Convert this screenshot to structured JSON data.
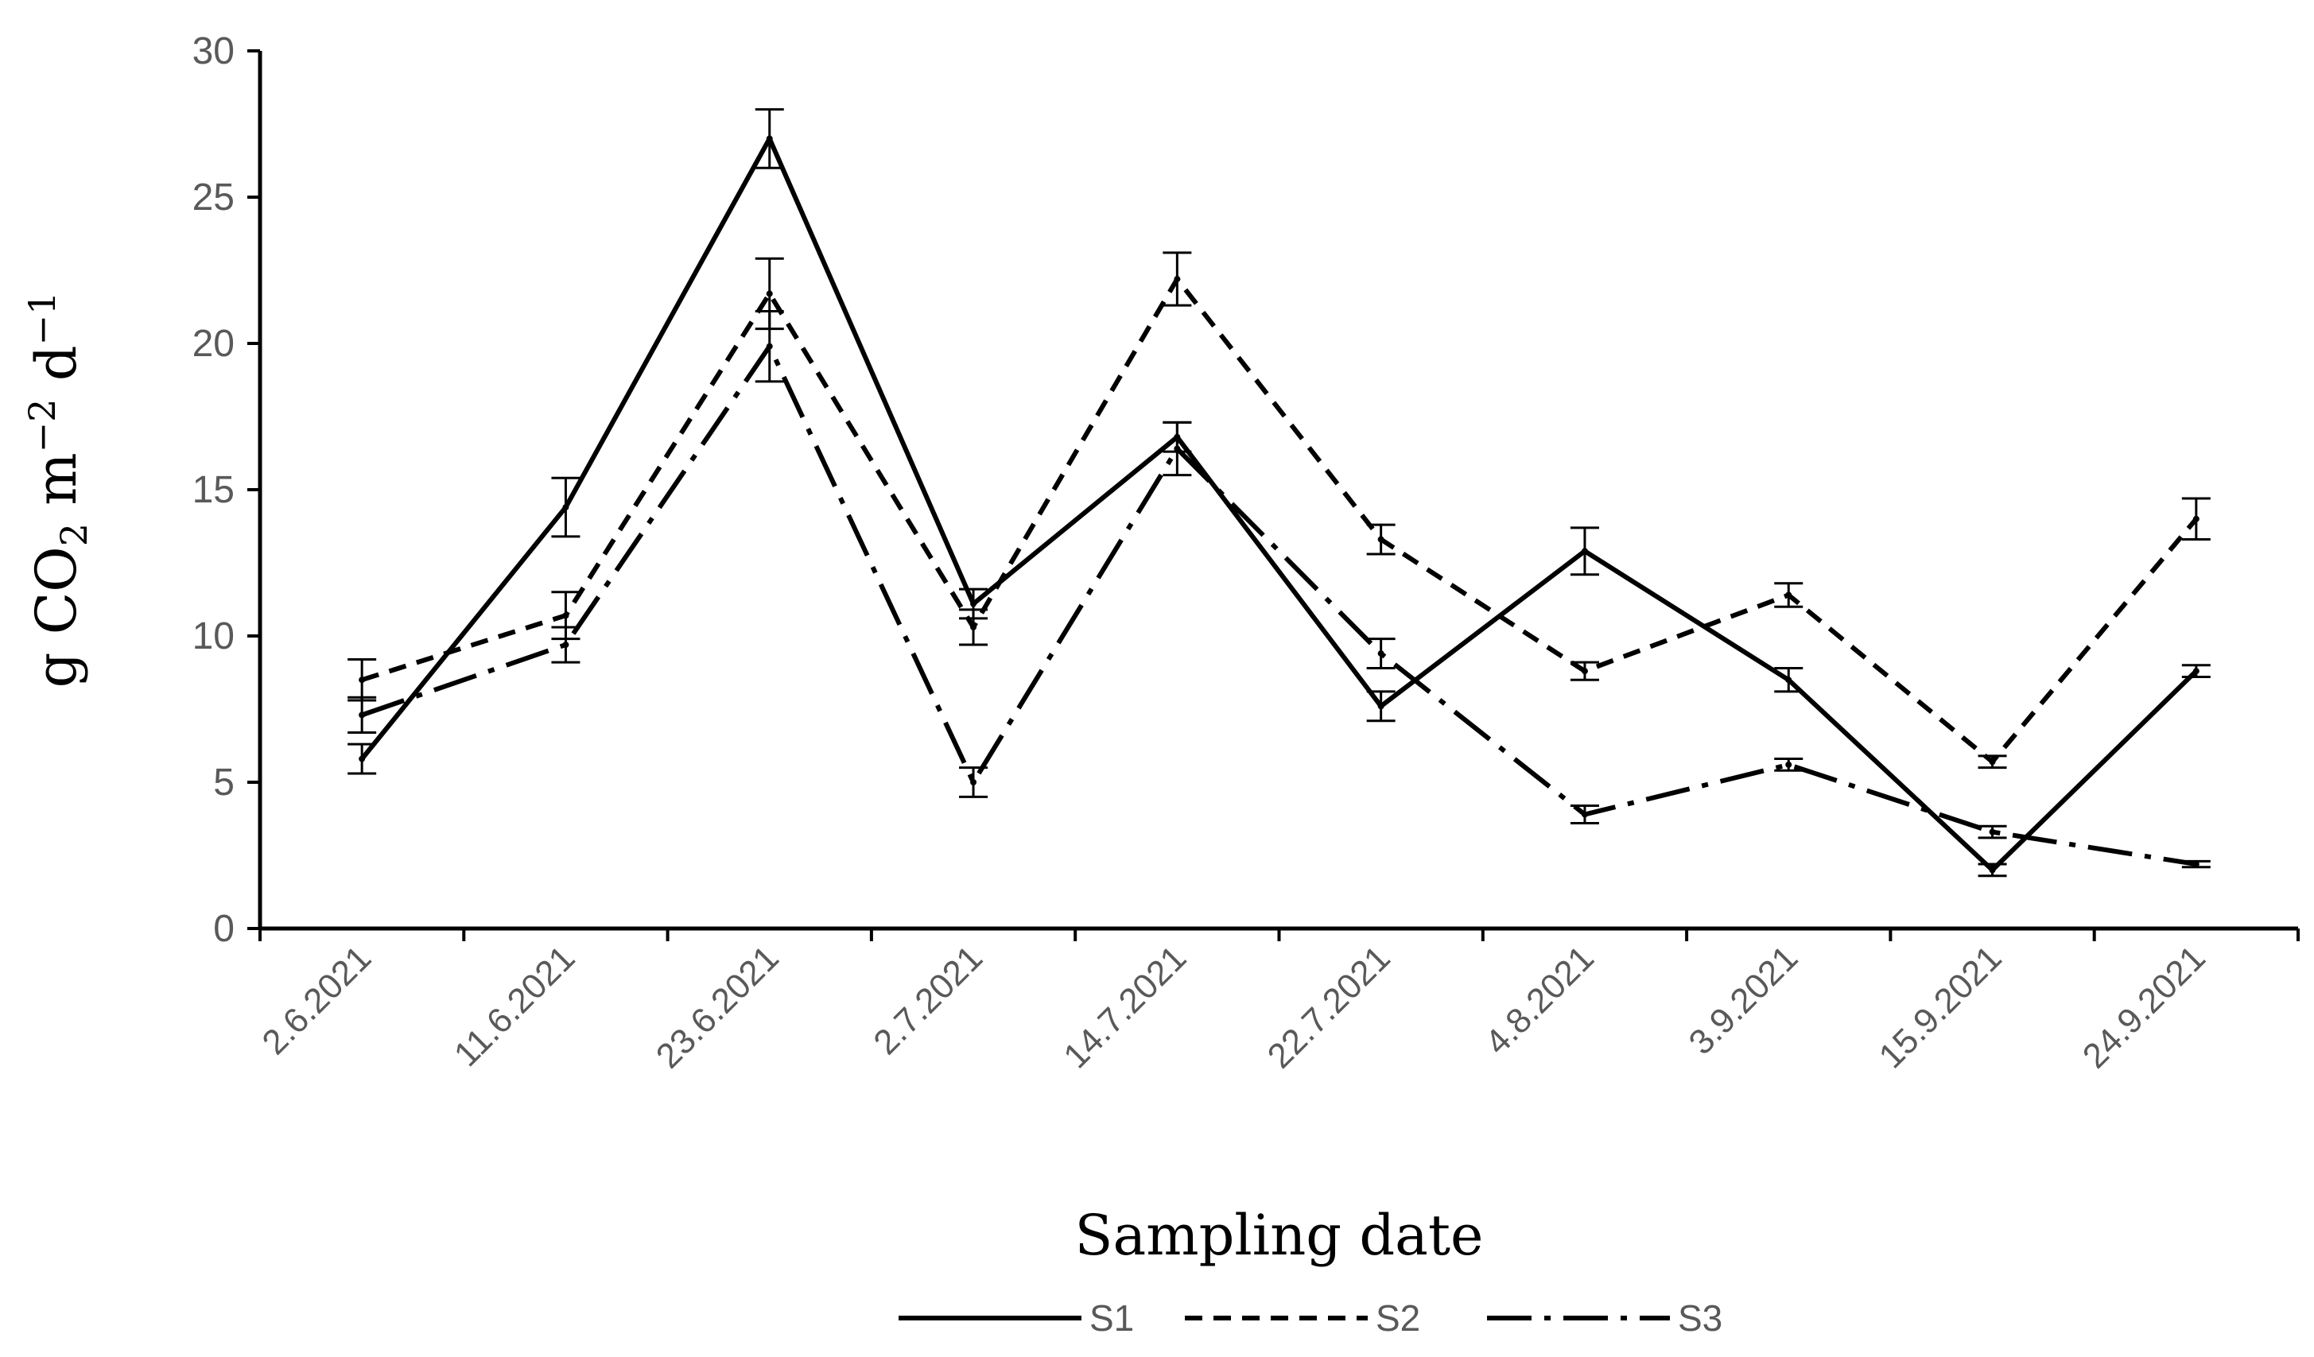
{
  "chart_data": {
    "type": "line",
    "categories": [
      "2.6.2021",
      "11.6.2021",
      "23.6.2021",
      "2.7.2021",
      "14.7.2021",
      "22.7.2021",
      "4.8.2021",
      "3.9.2021",
      "15.9.2021",
      "24.9.2021"
    ],
    "series": [
      {
        "name": "S1",
        "line_style": "solid",
        "values": [
          5.8,
          14.4,
          27.0,
          11.1,
          16.8,
          7.6,
          12.9,
          8.5,
          2.0,
          8.8
        ],
        "errors": [
          0.5,
          1.0,
          1.0,
          0.5,
          0.5,
          0.5,
          0.8,
          0.4,
          0.2,
          0.2
        ]
      },
      {
        "name": "S2",
        "line_style": "dashed",
        "values": [
          8.5,
          10.7,
          21.7,
          10.3,
          22.2,
          13.3,
          8.8,
          11.4,
          5.7,
          14.0
        ],
        "errors": [
          0.7,
          0.8,
          1.2,
          0.6,
          0.9,
          0.5,
          0.3,
          0.4,
          0.2,
          0.7
        ]
      },
      {
        "name": "S3",
        "line_style": "dash-dot",
        "values": [
          7.3,
          9.7,
          19.9,
          5.0,
          16.4,
          9.4,
          3.9,
          5.6,
          3.3,
          2.2
        ],
        "errors": [
          0.6,
          0.6,
          1.2,
          0.5,
          0.9,
          0.5,
          0.3,
          0.2,
          0.2,
          0.1
        ]
      }
    ],
    "xlabel": "Sampling date",
    "ylabel_parts": [
      "g CO",
      "2",
      " m",
      "−2",
      " d",
      "−1"
    ],
    "ylim": [
      0,
      30
    ],
    "yticks": [
      0,
      5,
      10,
      15,
      20,
      25,
      30
    ],
    "grid": false,
    "legend_position": "bottom-center",
    "colors": {
      "lines": "#000000",
      "ticks": "#595959"
    }
  }
}
